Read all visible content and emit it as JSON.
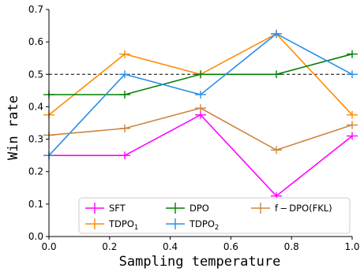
{
  "chart_data": {
    "type": "line",
    "xlabel": "Sampling temperature",
    "ylabel": "Win rate",
    "xlim": [
      0.0,
      1.0
    ],
    "ylim": [
      0.0,
      0.7
    ],
    "xticks": [
      "0.0",
      "0.2",
      "0.4",
      "0.6",
      "0.8",
      "1.0"
    ],
    "yticks": [
      "0.0",
      "0.1",
      "0.2",
      "0.3",
      "0.4",
      "0.5",
      "0.6",
      "0.7"
    ],
    "x": [
      0.0,
      0.25,
      0.5,
      0.75,
      1.0
    ],
    "reference_line": {
      "y": 0.5,
      "style": "dashed",
      "color": "#000000"
    },
    "grid": false,
    "legend_position": "lower-center",
    "series": [
      {
        "name": "SFT",
        "sub": "",
        "color": "#ff00ff",
        "values": [
          0.25,
          0.25,
          0.375,
          0.125,
          0.31
        ],
        "errors": [
          0.0,
          0.012,
          0.012,
          0.012,
          0.012
        ]
      },
      {
        "name": "TDPO",
        "sub": "1",
        "color": "#ff8c00",
        "values": [
          0.375,
          0.5625,
          0.5,
          0.625,
          0.375
        ],
        "errors": [
          0.012,
          0.012,
          0.012,
          0.012,
          0.012
        ]
      },
      {
        "name": "DPO",
        "sub": "",
        "color": "#008000",
        "values": [
          0.4375,
          0.4375,
          0.5,
          0.5,
          0.5625
        ],
        "errors": [
          0.012,
          0.012,
          0.012,
          0.012,
          0.012
        ]
      },
      {
        "name": "TDPO",
        "sub": "2",
        "color": "#2a8ee8",
        "values": [
          0.25,
          0.5,
          0.4375,
          0.625,
          0.5
        ],
        "errors": [
          0.012,
          0.012,
          0.012,
          0.012,
          0.012
        ]
      },
      {
        "name": "f − DPO(FKL)",
        "sub": "",
        "color": "#cd853f",
        "values": [
          0.3125,
          0.3333,
          0.3958,
          0.2667,
          0.3438
        ],
        "errors": [
          0.012,
          0.012,
          0.012,
          0.012,
          0.012
        ]
      }
    ]
  }
}
